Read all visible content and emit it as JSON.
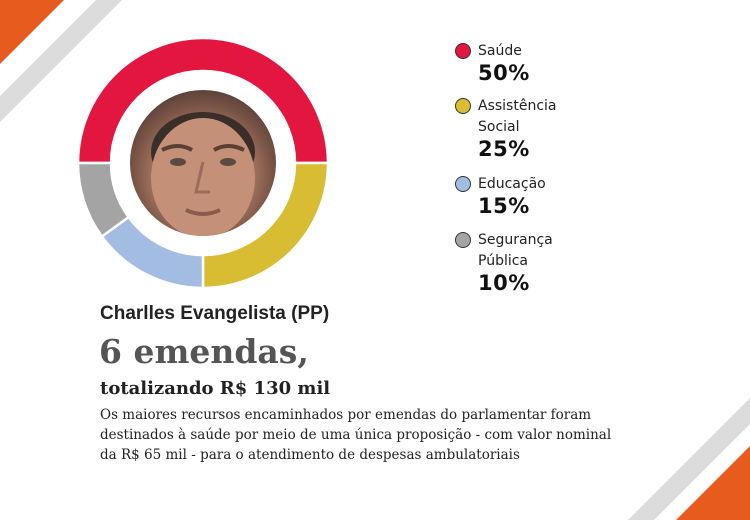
{
  "chart_data": {
    "type": "pie",
    "categories": [
      "Saúde",
      "Assistência Social",
      "Educação",
      "Segurança Pública"
    ],
    "values": [
      50,
      25,
      15,
      10
    ],
    "colors": [
      "#e3163f",
      "#d8bc32",
      "#a3bde2",
      "#a4a4a4"
    ]
  },
  "legend": [
    {
      "label_lines": [
        "Saúde"
      ],
      "percent": "50%",
      "color": "#e3163f"
    },
    {
      "label_lines": [
        "Assistência",
        "Social"
      ],
      "percent": "25%",
      "color": "#d8bc32"
    },
    {
      "label_lines": [
        "Educação"
      ],
      "percent": "15%",
      "color": "#a3bde2"
    },
    {
      "label_lines": [
        "Segurança",
        "Pública"
      ],
      "percent": "10%",
      "color": "#a4a4a4"
    }
  ],
  "name": "Charlles Evangelista (PP)",
  "headline": "6 emendas,",
  "subhead": "totalizando R$ 130 mil",
  "description_lines": [
    "Os maiores recursos encaminhados por emendas do parlamentar foram",
    "destinados à saúde por meio de uma única proposição -  com valor nominal",
    "da R$ 65 mil - para o atendimento de despesas ambulatoriais"
  ],
  "accent_colors": {
    "orange": "#e85b1f",
    "stripe_gray": "#dcdcdc"
  }
}
